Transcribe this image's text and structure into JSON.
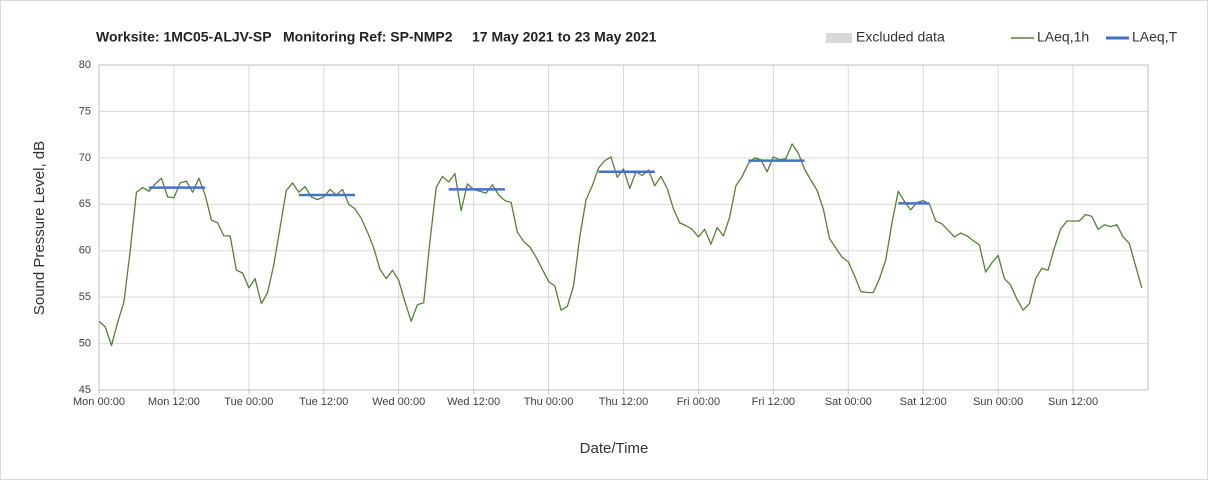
{
  "chart_data": {
    "type": "line",
    "title": "Worksite: 1MC05-ALJV-SP   Monitoring Ref: SP-NMP2     17 May 2021 to 23 May 2021",
    "xlabel": "Date/Time",
    "ylabel": "Sound Pressure Level, dB",
    "xlim": [
      0,
      168
    ],
    "ylim": [
      45,
      80
    ],
    "xticks": [
      {
        "value": 0,
        "label": "Mon 00:00"
      },
      {
        "value": 12,
        "label": "Mon 12:00"
      },
      {
        "value": 24,
        "label": "Tue 00:00"
      },
      {
        "value": 36,
        "label": "Tue 12:00"
      },
      {
        "value": 48,
        "label": "Wed 00:00"
      },
      {
        "value": 60,
        "label": "Wed 12:00"
      },
      {
        "value": 72,
        "label": "Thu 00:00"
      },
      {
        "value": 84,
        "label": "Thu 12:00"
      },
      {
        "value": 96,
        "label": "Fri 00:00"
      },
      {
        "value": 108,
        "label": "Fri 12:00"
      },
      {
        "value": 120,
        "label": "Sat 00:00"
      },
      {
        "value": 132,
        "label": "Sat 12:00"
      },
      {
        "value": 144,
        "label": "Sun 00:00"
      },
      {
        "value": 156,
        "label": "Sun 12:00"
      }
    ],
    "yticks": [
      45,
      50,
      55,
      60,
      65,
      70,
      75,
      80
    ],
    "grid": true,
    "series": [
      {
        "name": "Excluded data",
        "color": "#d9d9d9",
        "x": [],
        "values": []
      },
      {
        "name": "LAeq,1h",
        "color": "#548235",
        "x": [
          0,
          1,
          2,
          3,
          4,
          5,
          6,
          7,
          8,
          9,
          10,
          11,
          12,
          13,
          14,
          15,
          16,
          17,
          18,
          19,
          20,
          21,
          22,
          23,
          24,
          25,
          26,
          27,
          28,
          29,
          30,
          31,
          32,
          33,
          34,
          35,
          36,
          37,
          38,
          39,
          40,
          41,
          42,
          43,
          44,
          45,
          46,
          47,
          48,
          49,
          50,
          51,
          52,
          53,
          54,
          55,
          56,
          57,
          58,
          59,
          60,
          61,
          62,
          63,
          64,
          65,
          66,
          67,
          68,
          69,
          70,
          71,
          72,
          73,
          74,
          75,
          76,
          77,
          78,
          79,
          80,
          81,
          82,
          83,
          84,
          85,
          86,
          87,
          88,
          89,
          90,
          91,
          92,
          93,
          94,
          95,
          96,
          97,
          98,
          99,
          100,
          101,
          102,
          103,
          104,
          105,
          106,
          107,
          108,
          109,
          110,
          111,
          112,
          113,
          114,
          115,
          116,
          117,
          118,
          119,
          120,
          121,
          122,
          123,
          124,
          125,
          126,
          127,
          128,
          129,
          130,
          131,
          132,
          133,
          134,
          135,
          136,
          137,
          138,
          139,
          140,
          141,
          142,
          143,
          144,
          145,
          146,
          147,
          148,
          149,
          150,
          151,
          152,
          153,
          154,
          155,
          156,
          157,
          158,
          159,
          160,
          161,
          162,
          163,
          164,
          165,
          166,
          167
        ],
        "values": [
          52.4,
          51.8,
          49.8,
          52.3,
          54.5,
          60,
          66.3,
          66.8,
          66.4,
          67.2,
          67.8,
          65.8,
          65.7,
          67.3,
          67.5,
          66.3,
          67.8,
          66.0,
          63.3,
          63.0,
          61.6,
          61.6,
          57.9,
          57.6,
          56.0,
          57.0,
          54.3,
          55.5,
          58.5,
          62.5,
          66.5,
          67.3,
          66.3,
          66.9,
          65.8,
          65.5,
          65.8,
          66.6,
          66.0,
          66.6,
          65.0,
          64.5,
          63.5,
          62.0,
          60.3,
          58.0,
          57.0,
          57.9,
          56.8,
          54.5,
          52.4,
          54.2,
          54.4,
          61.0,
          66.8,
          68.0,
          67.4,
          68.3,
          64.3,
          67.2,
          66.6,
          66.4,
          66.2,
          67.1,
          66.0,
          65.4,
          65.2,
          62.0,
          61.0,
          60.4,
          59.3,
          58.0,
          56.7,
          56.2,
          53.6,
          54.0,
          56.2,
          61.5,
          65.5,
          67.0,
          68.9,
          69.7,
          70.1,
          67.9,
          68.8,
          66.7,
          68.5,
          68.1,
          68.7,
          67.0,
          68.0,
          66.7,
          64.5,
          63.0,
          62.7,
          62.3,
          61.5,
          62.3,
          60.7,
          62.5,
          61.6,
          63.6,
          67.0,
          68.0,
          69.4,
          70.0,
          69.8,
          68.5,
          70.1,
          69.8,
          69.9,
          71.5,
          70.5,
          68.8,
          67.6,
          66.5,
          64.5,
          61.3,
          60.3,
          59.3,
          58.8,
          57.3,
          55.6,
          55.5,
          55.5,
          57.0,
          59.0,
          63.0,
          66.4,
          65.3,
          64.4,
          65.2,
          65.4,
          65.0,
          63.2,
          62.9,
          62.2,
          61.5,
          61.9,
          61.6,
          61.1,
          60.6,
          57.7,
          58.7,
          59.5,
          57.0,
          56.3,
          54.8,
          53.6,
          54.3,
          57.0,
          58.1,
          57.9,
          60.3,
          62.3,
          63.2,
          63.2,
          63.2,
          63.9,
          63.7,
          62.3,
          62.8,
          62.6,
          62.8,
          61.5,
          60.8,
          58.4,
          56.0
        ]
      },
      {
        "name": "LAeq,T",
        "color": "#4472c4",
        "x": [
          8,
          17,
          24,
          32,
          41,
          48,
          56,
          65,
          72,
          80,
          89,
          96,
          104,
          113,
          120,
          128,
          133
        ],
        "values": [
          66.8,
          66.8,
          null,
          66.0,
          66.0,
          null,
          66.6,
          66.6,
          null,
          68.5,
          68.5,
          null,
          69.7,
          69.7,
          null,
          65.1,
          65.1
        ]
      }
    ]
  }
}
